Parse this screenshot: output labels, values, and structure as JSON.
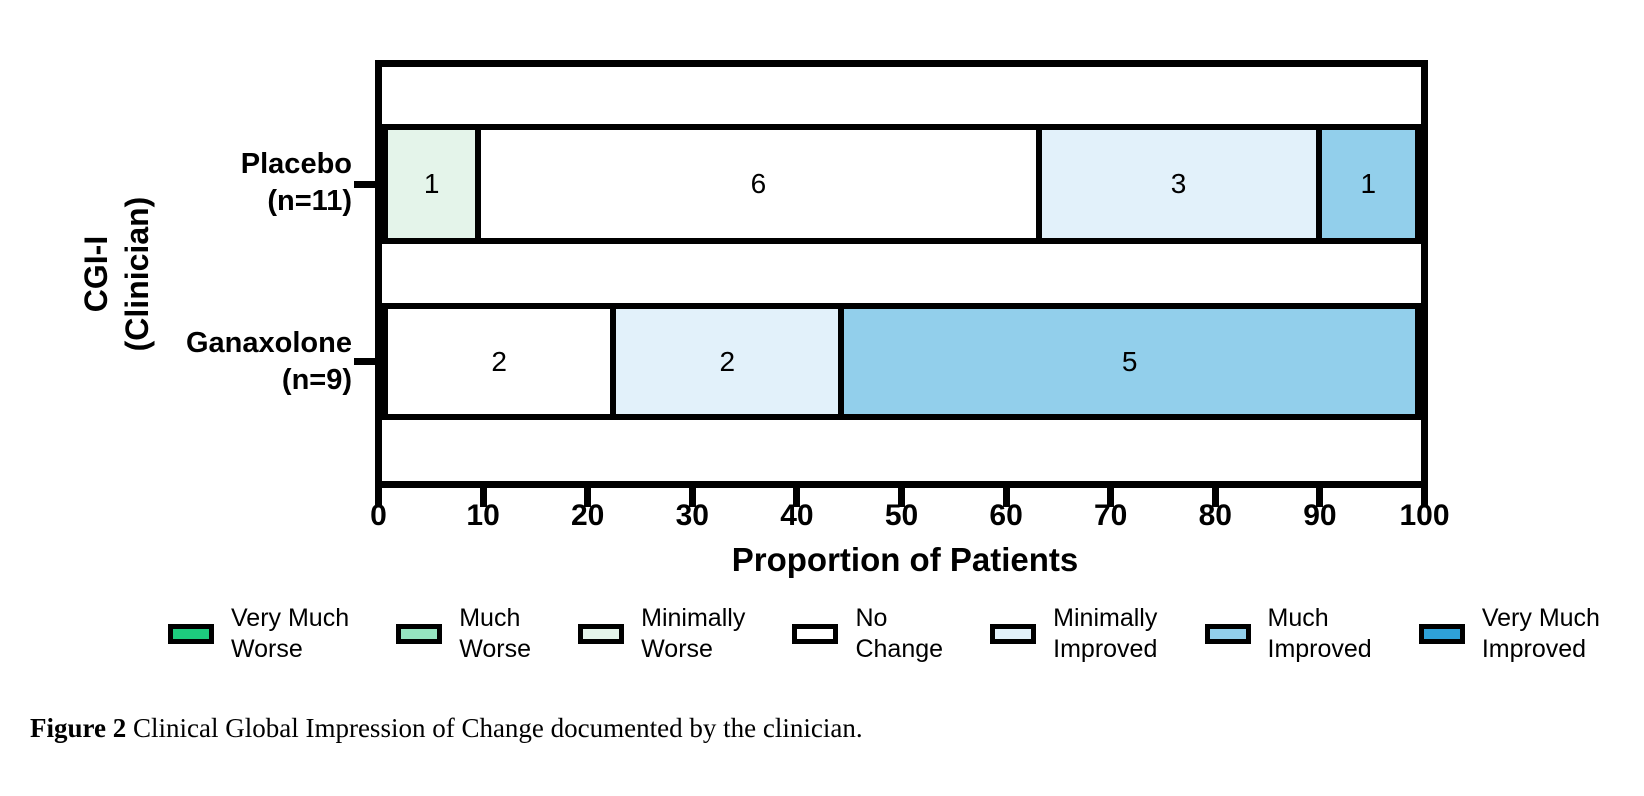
{
  "chart_data": {
    "type": "bar",
    "variant": "horizontal_stacked",
    "title": "",
    "xlabel": "Proportion of Patients",
    "ylabel": "CGI-I (Clinician)",
    "xlim": [
      0,
      100
    ],
    "x_tick_labels": [
      "0",
      "10",
      "20",
      "30",
      "40",
      "50",
      "60",
      "70",
      "80",
      "90",
      "100"
    ],
    "grid": false,
    "legend_position": "bottom",
    "categories": [
      "Placebo (n=11)",
      "Ganaxolone (n=9)"
    ],
    "scale_labels": [
      "Very Much Worse",
      "Much Worse",
      "Minimally Worse",
      "No Change",
      "Minimally Improved",
      "Much Improved",
      "Very Much Improved"
    ],
    "rows": [
      {
        "label_lines": [
          "Placebo",
          "(n=11)"
        ],
        "n": 11,
        "segments": [
          {
            "category": "Minimally Worse",
            "count": 1,
            "percent": 9.0909,
            "color": "#e4f4ea"
          },
          {
            "category": "No Change",
            "count": 6,
            "percent": 54.5455,
            "color": "#ffffff"
          },
          {
            "category": "Minimally Improved",
            "count": 3,
            "percent": 27.2727,
            "color": "#e2f1fa"
          },
          {
            "category": "Much Improved",
            "count": 1,
            "percent": 9.0909,
            "color": "#92cfeb"
          }
        ]
      },
      {
        "label_lines": [
          "Ganaxolone",
          "(n=9)"
        ],
        "n": 9,
        "segments": [
          {
            "category": "No Change",
            "count": 2,
            "percent": 22.2222,
            "color": "#ffffff"
          },
          {
            "category": "Minimally Improved",
            "count": 2,
            "percent": 22.2222,
            "color": "#e2f1fa"
          },
          {
            "category": "Much Improved",
            "count": 5,
            "percent": 55.5556,
            "color": "#92cfeb"
          }
        ]
      }
    ]
  },
  "axes": {
    "x_title": "Proportion of Patients",
    "y_title_lines": [
      "CGI-I",
      "(Clinician)"
    ]
  },
  "legend": {
    "items": [
      {
        "label_lines": [
          "Very Much",
          "Worse"
        ],
        "color": "#1dcb7e"
      },
      {
        "label_lines": [
          "Much",
          "Worse"
        ],
        "color": "#95e4c0"
      },
      {
        "label_lines": [
          "Minimally",
          "Worse"
        ],
        "color": "#e4f4ea"
      },
      {
        "label_lines": [
          "No",
          "Change"
        ],
        "color": "#ffffff"
      },
      {
        "label_lines": [
          "Minimally",
          "Improved"
        ],
        "color": "#e2f1fa"
      },
      {
        "label_lines": [
          "Much",
          "Improved"
        ],
        "color": "#92cfeb"
      },
      {
        "label_lines": [
          "Very Much",
          "Improved"
        ],
        "color": "#2ea1d8"
      }
    ]
  },
  "caption": {
    "bold": "Figure 2",
    "rest": " Clinical Global Impression of Change documented by the clinician."
  }
}
